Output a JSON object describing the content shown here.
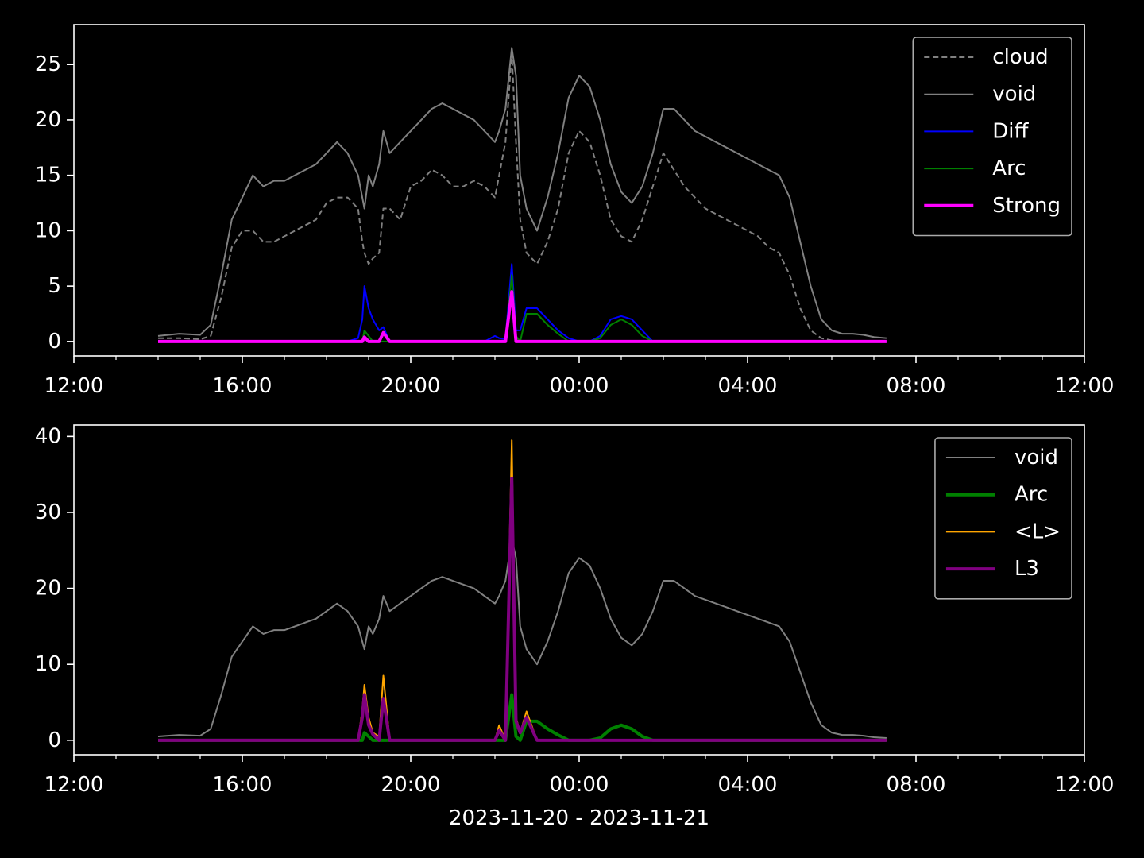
{
  "chart_data": [
    {
      "type": "line",
      "legend": "upper right",
      "xlim": [
        12,
        36
      ],
      "ylim": [
        -1.3,
        28.6
      ],
      "xticks": [
        {
          "value": 12,
          "label": "12:00"
        },
        {
          "value": 16,
          "label": "16:00"
        },
        {
          "value": 20,
          "label": "20:00"
        },
        {
          "value": 24,
          "label": "00:00"
        },
        {
          "value": 28,
          "label": "04:00"
        },
        {
          "value": 32,
          "label": "08:00"
        },
        {
          "value": 36,
          "label": "12:00"
        }
      ],
      "xminorticks": [
        13,
        14,
        15,
        17,
        18,
        19,
        21,
        22,
        23,
        25,
        26,
        27,
        29,
        30,
        31,
        33,
        34,
        35
      ],
      "yticks": [
        0,
        5,
        10,
        15,
        20,
        25
      ],
      "x": [
        14.0,
        14.5,
        15.0,
        15.25,
        15.5,
        15.75,
        16.0,
        16.25,
        16.5,
        16.75,
        17.0,
        17.25,
        17.5,
        17.75,
        18.0,
        18.25,
        18.5,
        18.75,
        18.85,
        18.9,
        19.0,
        19.1,
        19.25,
        19.35,
        19.5,
        19.75,
        20.0,
        20.25,
        20.5,
        20.75,
        21.0,
        21.25,
        21.5,
        21.75,
        22.0,
        22.1,
        22.25,
        22.4,
        22.5,
        22.6,
        22.75,
        23.0,
        23.25,
        23.5,
        23.75,
        24.0,
        24.25,
        24.5,
        24.75,
        25.0,
        25.25,
        25.5,
        25.75,
        26.0,
        26.25,
        26.5,
        26.75,
        27.0,
        27.25,
        27.5,
        27.75,
        28.0,
        28.25,
        28.5,
        28.75,
        29.0,
        29.25,
        29.5,
        29.75,
        30.0,
        30.25,
        30.5,
        30.75,
        31.0,
        31.3
      ],
      "series": [
        {
          "name": "cloud",
          "color": "#808080",
          "linestyle": "dashed",
          "values": [
            0.3,
            0.3,
            0.2,
            0.5,
            4,
            8.5,
            10,
            10,
            9,
            9,
            9.5,
            10,
            10.5,
            11,
            12.5,
            13,
            13,
            12,
            9,
            8,
            7,
            7.5,
            8,
            12,
            12,
            11,
            14,
            14.5,
            15.5,
            15,
            14,
            14,
            14.5,
            14,
            13,
            15,
            18,
            26,
            18,
            11,
            8,
            7,
            9,
            12,
            17,
            19,
            18,
            15,
            11,
            9.5,
            9,
            11,
            14,
            17,
            15.5,
            14,
            13,
            12,
            11.5,
            11,
            10.5,
            10,
            9.5,
            8.5,
            8,
            6,
            3,
            1,
            0.3,
            0.1,
            0,
            0,
            0,
            0,
            0
          ]
        },
        {
          "name": "void",
          "color": "#808080",
          "linestyle": "solid",
          "values": [
            0.5,
            0.7,
            0.6,
            1.5,
            6,
            11,
            13,
            15,
            14,
            14.5,
            14.5,
            15,
            15.5,
            16,
            17,
            18,
            17,
            15,
            13,
            12,
            15,
            14,
            16,
            19,
            17,
            18,
            19,
            20,
            21,
            21.5,
            21,
            20.5,
            20,
            19,
            18,
            19,
            21,
            26.5,
            24,
            15,
            12,
            10,
            13,
            17,
            22,
            24,
            23,
            20,
            16,
            13.5,
            12.5,
            14,
            17,
            21,
            21,
            20,
            19,
            18.5,
            18,
            17.5,
            17,
            16.5,
            16,
            15.5,
            15,
            13,
            9,
            5,
            2,
            1,
            0.7,
            0.7,
            0.6,
            0.4,
            0.3
          ]
        },
        {
          "name": "Diff",
          "color": "#0000ff",
          "linestyle": "solid",
          "values": [
            0,
            0,
            0,
            0,
            0,
            0,
            0,
            0,
            0,
            0,
            0,
            0,
            0,
            0,
            0,
            0,
            0,
            0.3,
            2,
            5,
            3,
            2,
            1,
            1.3,
            0,
            0,
            0,
            0,
            0,
            0,
            0,
            0,
            0,
            0,
            0.5,
            0.3,
            0.2,
            7,
            1,
            1,
            3,
            3,
            2,
            1,
            0.3,
            0,
            0,
            0.5,
            2,
            2.3,
            2,
            1,
            0,
            0,
            0,
            0,
            0,
            0,
            0,
            0,
            0,
            0,
            0,
            0,
            0,
            0,
            0,
            0,
            0,
            0,
            0,
            0,
            0,
            0,
            0
          ]
        },
        {
          "name": "Arc",
          "color": "#008000",
          "linestyle": "solid",
          "values": [
            0,
            0,
            0,
            0,
            0,
            0,
            0,
            0,
            0,
            0,
            0,
            0,
            0,
            0,
            0,
            0,
            0,
            0,
            0,
            1,
            0.5,
            0,
            0,
            0,
            0,
            0,
            0,
            0,
            0,
            0,
            0,
            0,
            0,
            0,
            0,
            0,
            0,
            6,
            0.5,
            0,
            2.5,
            2.5,
            1.5,
            0.7,
            0,
            0,
            0,
            0.3,
            1.5,
            2,
            1.5,
            0.5,
            0,
            0,
            0,
            0,
            0,
            0,
            0,
            0,
            0,
            0,
            0,
            0,
            0,
            0,
            0,
            0,
            0,
            0,
            0,
            0,
            0,
            0,
            0
          ]
        },
        {
          "name": "Strong",
          "color": "#ff00ff",
          "linestyle": "solid",
          "weight": "bold",
          "values": [
            0,
            0,
            0,
            0,
            0,
            0,
            0,
            0,
            0,
            0,
            0,
            0,
            0,
            0,
            0,
            0,
            0,
            0,
            0,
            0.4,
            0,
            0,
            0,
            0.8,
            0,
            0,
            0,
            0,
            0,
            0,
            0,
            0,
            0,
            0,
            0,
            0,
            0,
            4.5,
            0,
            0,
            0,
            0,
            0,
            0,
            0,
            0,
            0,
            0,
            0,
            0,
            0,
            0,
            0,
            0,
            0,
            0,
            0,
            0,
            0,
            0,
            0,
            0,
            0,
            0,
            0,
            0,
            0,
            0,
            0,
            0,
            0,
            0,
            0,
            0,
            0
          ]
        }
      ]
    },
    {
      "type": "line",
      "legend": "upper right",
      "xlim": [
        12,
        36
      ],
      "ylim": [
        -1.9,
        41.5
      ],
      "xlabel": "2023-11-20 - 2023-11-21",
      "xticks": [
        {
          "value": 12,
          "label": "12:00"
        },
        {
          "value": 16,
          "label": "16:00"
        },
        {
          "value": 20,
          "label": "20:00"
        },
        {
          "value": 24,
          "label": "00:00"
        },
        {
          "value": 28,
          "label": "04:00"
        },
        {
          "value": 32,
          "label": "08:00"
        },
        {
          "value": 36,
          "label": "12:00"
        }
      ],
      "xminorticks": [
        13,
        14,
        15,
        17,
        18,
        19,
        21,
        22,
        23,
        25,
        26,
        27,
        29,
        30,
        31,
        33,
        34,
        35
      ],
      "yticks": [
        0,
        10,
        20,
        30,
        40
      ],
      "x": [
        14.0,
        14.5,
        15.0,
        15.25,
        15.5,
        15.75,
        16.0,
        16.25,
        16.5,
        16.75,
        17.0,
        17.25,
        17.5,
        17.75,
        18.0,
        18.25,
        18.5,
        18.75,
        18.85,
        18.9,
        19.0,
        19.1,
        19.25,
        19.35,
        19.5,
        19.75,
        20.0,
        20.25,
        20.5,
        20.75,
        21.0,
        21.25,
        21.5,
        21.75,
        22.0,
        22.1,
        22.25,
        22.4,
        22.5,
        22.6,
        22.75,
        23.0,
        23.25,
        23.5,
        23.75,
        24.0,
        24.25,
        24.5,
        24.75,
        25.0,
        25.25,
        25.5,
        25.75,
        26.0,
        26.25,
        26.5,
        26.75,
        27.0,
        27.25,
        27.5,
        27.75,
        28.0,
        28.25,
        28.5,
        28.75,
        29.0,
        29.25,
        29.5,
        29.75,
        30.0,
        30.25,
        30.5,
        30.75,
        31.0,
        31.3
      ],
      "series": [
        {
          "name": "void",
          "color": "#808080",
          "linestyle": "solid",
          "values": [
            0.5,
            0.7,
            0.6,
            1.5,
            6,
            11,
            13,
            15,
            14,
            14.5,
            14.5,
            15,
            15.5,
            16,
            17,
            18,
            17,
            15,
            13,
            12,
            15,
            14,
            16,
            19,
            17,
            18,
            19,
            20,
            21,
            21.5,
            21,
            20.5,
            20,
            19,
            18,
            19,
            21,
            26.5,
            24,
            15,
            12,
            10,
            13,
            17,
            22,
            24,
            23,
            20,
            16,
            13.5,
            12.5,
            14,
            17,
            21,
            21,
            20,
            19,
            18.5,
            18,
            17.5,
            17,
            16.5,
            16,
            15.5,
            15,
            13,
            9,
            5,
            2,
            1,
            0.7,
            0.7,
            0.6,
            0.4,
            0.3
          ]
        },
        {
          "name": "Arc",
          "color": "#008000",
          "linestyle": "solid",
          "weight": "bold",
          "values": [
            0,
            0,
            0,
            0,
            0,
            0,
            0,
            0,
            0,
            0,
            0,
            0,
            0,
            0,
            0,
            0,
            0,
            0,
            0,
            1,
            0.5,
            0,
            0,
            0,
            0,
            0,
            0,
            0,
            0,
            0,
            0,
            0,
            0,
            0,
            0,
            0,
            0,
            6,
            0.5,
            0,
            2.5,
            2.5,
            1.5,
            0.7,
            0,
            0,
            0,
            0.3,
            1.5,
            2,
            1.5,
            0.5,
            0,
            0,
            0,
            0,
            0,
            0,
            0,
            0,
            0,
            0,
            0,
            0,
            0,
            0,
            0,
            0,
            0,
            0,
            0,
            0,
            0,
            0,
            0
          ]
        },
        {
          "name": "<L>",
          "color": "#ffa500",
          "linestyle": "solid",
          "values": [
            0,
            0,
            0,
            0,
            0,
            0,
            0,
            0,
            0,
            0,
            0,
            0,
            0,
            0,
            0,
            0,
            0,
            0,
            4,
            7.3,
            3,
            1,
            0.5,
            8.5,
            0,
            0,
            0,
            0,
            0,
            0,
            0,
            0,
            0,
            0,
            0,
            2,
            0,
            39.5,
            3,
            1,
            3.8,
            0,
            0,
            0,
            0,
            0,
            0,
            0,
            0,
            0,
            0,
            0,
            0,
            0,
            0,
            0,
            0,
            0,
            0,
            0,
            0,
            0,
            0,
            0,
            0,
            0,
            0,
            0,
            0,
            0,
            0,
            0,
            0,
            0,
            0
          ]
        },
        {
          "name": "L3",
          "color": "#800080",
          "linestyle": "solid",
          "weight": "bold",
          "values": [
            0,
            0,
            0,
            0,
            0,
            0,
            0,
            0,
            0,
            0,
            0,
            0,
            0,
            0,
            0,
            0,
            0,
            0,
            3,
            6,
            2,
            0.8,
            0,
            5.5,
            0,
            0,
            0,
            0,
            0,
            0,
            0,
            0,
            0,
            0,
            0,
            1.3,
            0,
            34.5,
            2.5,
            1,
            3,
            0,
            0,
            0,
            0,
            0,
            0,
            0,
            0,
            0,
            0,
            0,
            0,
            0,
            0,
            0,
            0,
            0,
            0,
            0,
            0,
            0,
            0,
            0,
            0,
            0,
            0,
            0,
            0,
            0,
            0,
            0,
            0,
            0,
            0
          ]
        }
      ]
    }
  ]
}
